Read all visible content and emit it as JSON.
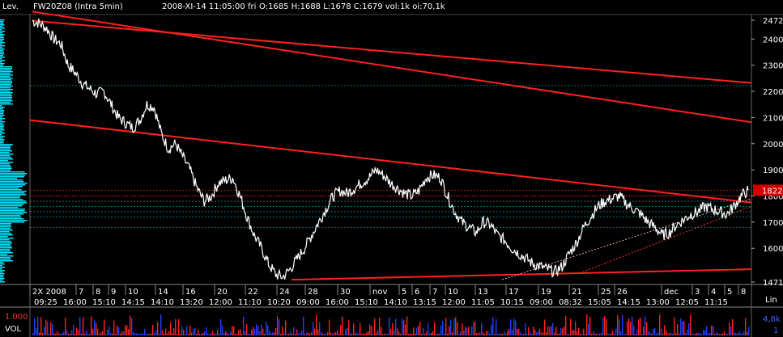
{
  "header": {
    "symbol": "FW20Z08 (Intra 5min)",
    "datetime": "2008-XI-14  11:05:00 fri",
    "ohlc": "O:1685 H:1688 L:1678 C:1679 vol:1k oi:70,1k",
    "left_label": "Lev.",
    "scale_label": "Lin"
  },
  "volume_panel": {
    "left_top": "1.000",
    "left_label": "VOL",
    "right_top": "4,8k",
    "right_bottom": "1"
  },
  "colors": {
    "price": "#ffffff",
    "trendline": "#ff2020",
    "last_price_box": "#d00000",
    "volume_profile": "#00e5ff",
    "volume_up": "#ff2020",
    "volume_down": "#2040ff",
    "grid": "#00c0c0"
  },
  "chart_data": {
    "type": "line",
    "title": "FW20Z08 (Intra 5min)",
    "ylim": [
      1471,
      2472
    ],
    "y_scale": "linear",
    "y_ticks": [
      "2472",
      "2400",
      "2300",
      "2200",
      "2100",
      "2000",
      "1900",
      "1822",
      "1800",
      "1700",
      "1600",
      "1471"
    ],
    "last_price": 1822,
    "date_labels_top": [
      "2X 2008",
      "7",
      "8",
      "9",
      "10",
      "14",
      "16",
      "20",
      "22",
      "24",
      "28",
      "30",
      "nov",
      "5",
      "6",
      "7",
      "10",
      "13",
      "17",
      "19",
      "21",
      "25",
      "26",
      "dec",
      "3",
      "4",
      "5",
      "8"
    ],
    "time_labels_bottom": [
      "09:25",
      "16:00",
      "15:10",
      "14:15",
      "14:10",
      "13:20",
      "12:00",
      "11:10",
      "10:20",
      "09:00",
      "16:00",
      "15:10",
      "14:10",
      "13:15",
      "12:00",
      "11:05",
      "10:15",
      "09:00",
      "08:32",
      "15:05",
      "14:15",
      "13:00",
      "12:05",
      "11:15"
    ],
    "series": [
      {
        "values": [
          2470,
          2460,
          2440,
          2400,
          2380,
          2300,
          2270,
          2230,
          2210,
          2190,
          2200,
          2150,
          2100,
          2080,
          2060,
          2090,
          2150,
          2140,
          2040,
          1980,
          2000,
          1950,
          1900,
          1830,
          1780,
          1800,
          1850,
          1860,
          1870,
          1800,
          1720,
          1650,
          1600,
          1540,
          1500,
          1490,
          1520,
          1560,
          1600,
          1650,
          1700,
          1750,
          1800,
          1820,
          1810,
          1830,
          1850,
          1870,
          1900,
          1880,
          1850,
          1830,
          1810,
          1800,
          1820,
          1870,
          1880,
          1870,
          1800,
          1740,
          1700,
          1680,
          1660,
          1700,
          1690,
          1650,
          1630,
          1600,
          1580,
          1560,
          1540,
          1530,
          1520,
          1510,
          1530,
          1580,
          1620,
          1680,
          1720,
          1760,
          1780,
          1790,
          1800,
          1770,
          1750,
          1730,
          1700,
          1680,
          1650,
          1660,
          1690,
          1710,
          1730,
          1740,
          1760,
          1750,
          1740,
          1730,
          1760,
          1800,
          1822
        ]
      }
    ]
  }
}
